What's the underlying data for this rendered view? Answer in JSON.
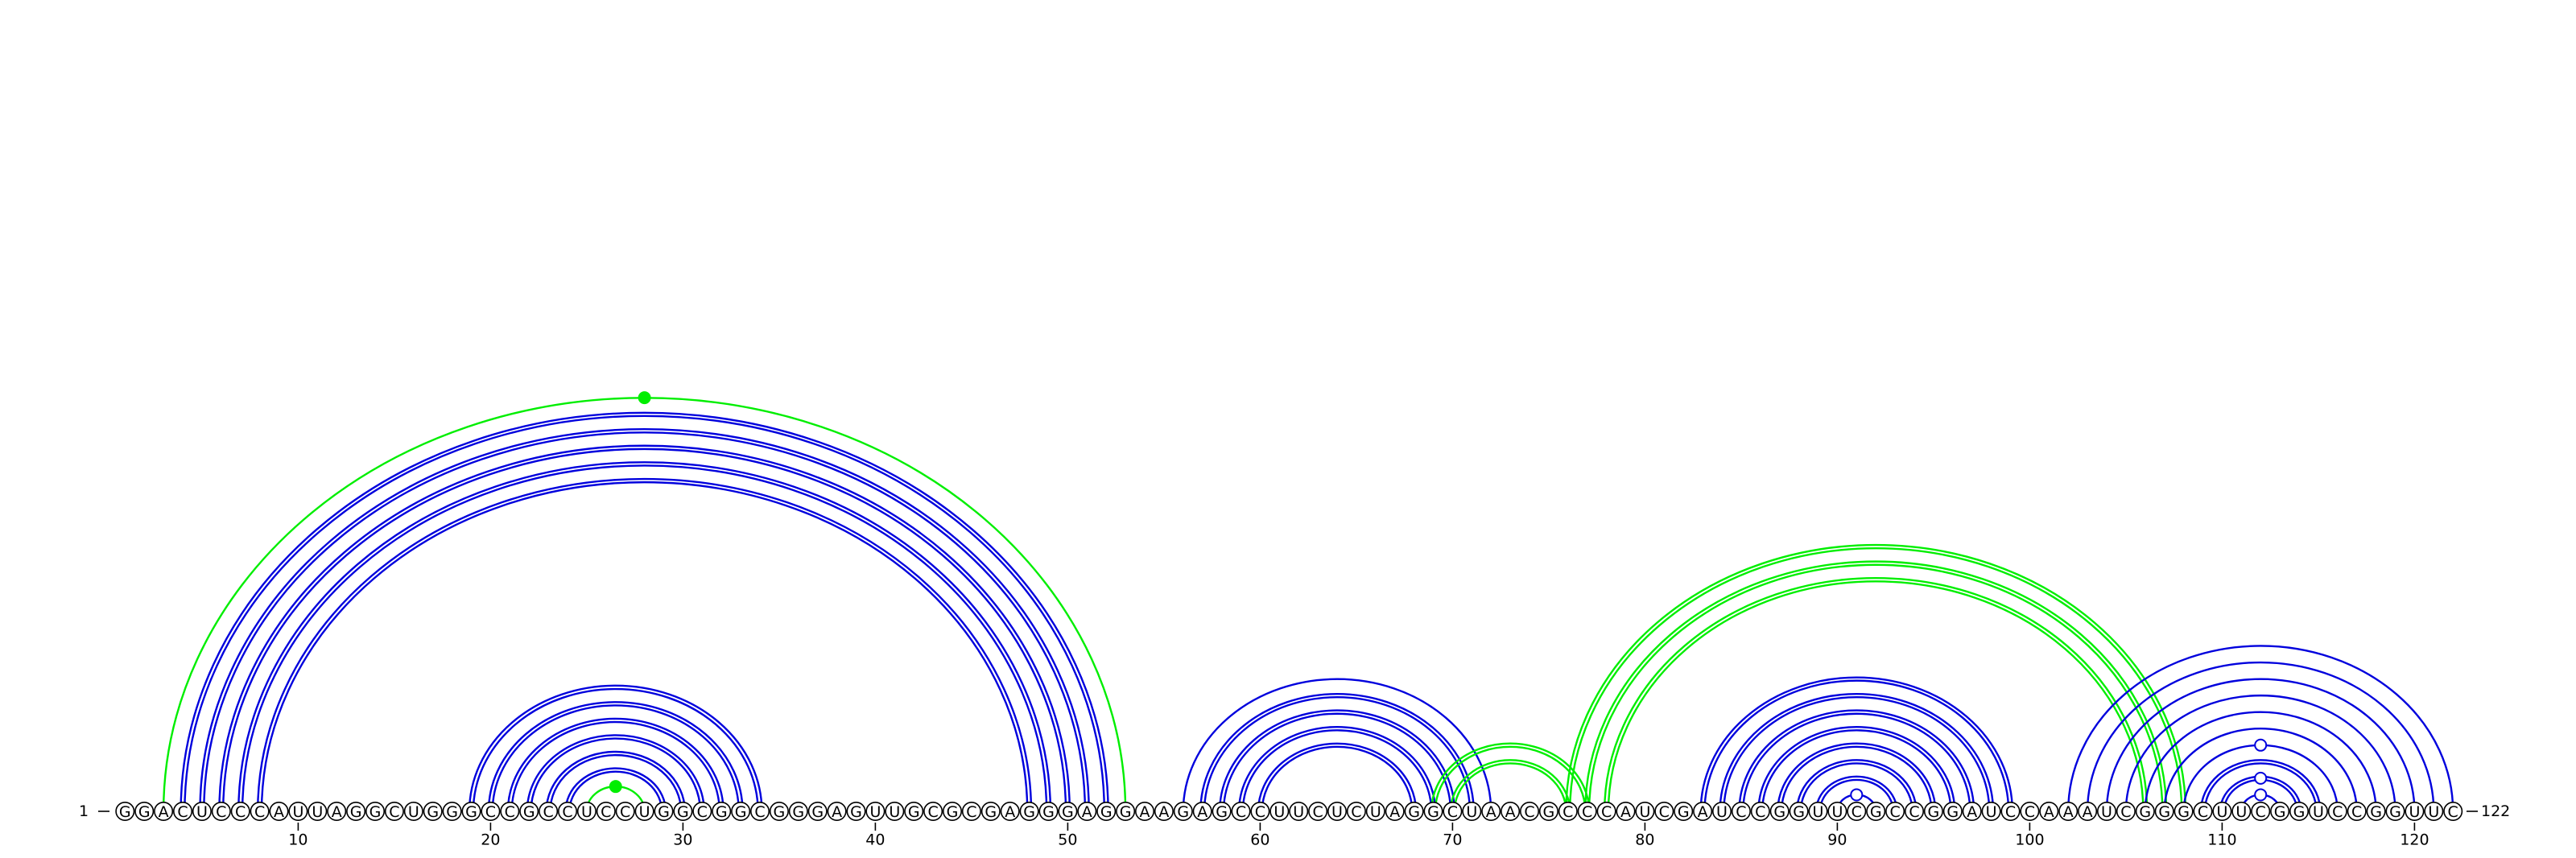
{
  "sequence": "GGACUCCCAUUAGGCUGGGCCGCCUCCUGGCGGCGGGAGUUGCGCGAGGGAGGAAGAGCCUUCUCUAGGCUAACGCCCAUCGAUCCGGUUCGCCGGAUCCAAAUCGGGCUUCGGUCCGGUUC",
  "start_label": "1",
  "end_label": "122",
  "axis_ticks": [
    10,
    20,
    30,
    40,
    50,
    60,
    70,
    80,
    90,
    100,
    110,
    120
  ],
  "colors": {
    "pair": "#0000dd",
    "highlight": "#00ee00",
    "circle_stroke": "#000000"
  },
  "arc_groups": [
    {
      "name": "outer-helix",
      "color": "highlight",
      "double": false,
      "pairs": [
        [
          3,
          53
        ]
      ]
    },
    {
      "name": "helix-1",
      "color": "pair",
      "double": true,
      "pairs": [
        [
          4,
          52
        ],
        [
          5,
          51
        ],
        [
          6,
          50
        ],
        [
          7,
          49
        ],
        [
          8,
          48
        ]
      ]
    },
    {
      "name": "helix-2",
      "color": "pair",
      "double": true,
      "pairs": [
        [
          19,
          34
        ],
        [
          20,
          33
        ],
        [
          21,
          32
        ],
        [
          22,
          31
        ],
        [
          23,
          30
        ],
        [
          24,
          29
        ]
      ]
    },
    {
      "name": "hairpin-2",
      "color": "highlight",
      "double": false,
      "pairs": [
        [
          25,
          28
        ]
      ]
    },
    {
      "name": "helix-3",
      "color": "pair",
      "double": true,
      "pairs": [
        [
          57,
          71
        ],
        [
          58,
          70
        ],
        [
          59,
          69
        ],
        [
          60,
          68
        ]
      ]
    },
    {
      "name": "helix-3-outer",
      "color": "pair",
      "double": false,
      "pairs": [
        [
          56,
          72
        ]
      ]
    },
    {
      "name": "pseudoknot-1",
      "color": "highlight",
      "double": true,
      "pairs": [
        [
          69,
          77
        ],
        [
          70,
          76
        ]
      ]
    },
    {
      "name": "pseudoknot-2",
      "color": "highlight",
      "double": true,
      "pairs": [
        [
          76,
          108
        ],
        [
          77,
          107
        ],
        [
          78,
          106
        ]
      ]
    },
    {
      "name": "helix-4",
      "color": "pair",
      "double": true,
      "pairs": [
        [
          83,
          99
        ],
        [
          84,
          98
        ],
        [
          85,
          97
        ],
        [
          86,
          96
        ],
        [
          87,
          95
        ],
        [
          88,
          94
        ],
        [
          89,
          93
        ]
      ]
    },
    {
      "name": "hairpin-4",
      "color": "pair",
      "double": false,
      "pairs": [
        [
          90,
          92
        ]
      ]
    },
    {
      "name": "helix-5-outer",
      "color": "pair",
      "double": false,
      "pairs": [
        [
          102,
          122
        ],
        [
          103,
          121
        ],
        [
          104,
          120
        ],
        [
          105,
          119
        ],
        [
          106,
          118
        ],
        [
          107,
          117
        ],
        [
          108,
          116
        ]
      ]
    },
    {
      "name": "helix-5",
      "color": "pair",
      "double": true,
      "pairs": [
        [
          109,
          115
        ],
        [
          110,
          114
        ]
      ]
    },
    {
      "name": "hairpin-5",
      "color": "pair",
      "double": false,
      "pairs": [
        [
          111,
          113
        ]
      ]
    }
  ],
  "markers": [
    {
      "arc": [
        3,
        53
      ],
      "filled": true,
      "color": "highlight"
    },
    {
      "arc": [
        25,
        28
      ],
      "filled": true,
      "color": "highlight"
    },
    {
      "arc": [
        90,
        92
      ],
      "filled": false,
      "color": "pair"
    },
    {
      "arc": [
        108,
        116
      ],
      "filled": false,
      "color": "pair"
    },
    {
      "arc": [
        110,
        114
      ],
      "filled": false,
      "color": "pair"
    },
    {
      "arc": [
        111,
        113
      ],
      "filled": false,
      "color": "pair"
    }
  ]
}
